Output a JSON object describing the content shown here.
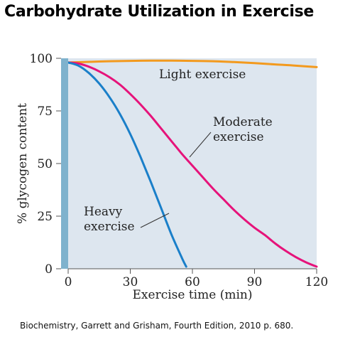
{
  "title": "Carbohydrate Utilization in Exercise",
  "caption": "Biochemistry, Garrett and Grisham, Fourth Edition, 2010 p. 680.",
  "chart_data": {
    "type": "line",
    "title": "Carbohydrate Utilization in Exercise",
    "xlabel": "Exercise time (min)",
    "ylabel": "% glycogen content",
    "xlim": [
      0,
      120
    ],
    "ylim": [
      0,
      100
    ],
    "xticks": [
      0,
      30,
      60,
      90,
      120
    ],
    "yticks": [
      0,
      25,
      50,
      75,
      100
    ],
    "grid": false,
    "background": "#dde6ef",
    "series": [
      {
        "name": "Light exercise",
        "color": "#f39a1e",
        "x": [
          0,
          10,
          20,
          30,
          40,
          50,
          60,
          70,
          80,
          90,
          100,
          110,
          120
        ],
        "y": [
          98,
          98.3,
          98.6,
          98.8,
          98.9,
          98.9,
          98.8,
          98.6,
          98.2,
          97.7,
          97.1,
          96.5,
          95.8
        ]
      },
      {
        "name": "Moderate exercise",
        "color": "#e6137a",
        "x": [
          0,
          5,
          10,
          15,
          20,
          25,
          30,
          35,
          40,
          45,
          50,
          55,
          60,
          65,
          70,
          75,
          80,
          85,
          90,
          95,
          100,
          105,
          110,
          115,
          120
        ],
        "y": [
          98,
          97.5,
          96,
          93.8,
          91,
          87.5,
          83,
          78,
          72.5,
          66.5,
          60.5,
          54.5,
          49,
          43.5,
          38,
          33,
          28,
          23.5,
          19.5,
          16,
          12,
          8.5,
          5.5,
          3,
          1
        ]
      },
      {
        "name": "Heavy exercise",
        "color": "#1a7fc9",
        "x": [
          0,
          5,
          10,
          15,
          20,
          25,
          30,
          35,
          40,
          45,
          50,
          55,
          57
        ],
        "y": [
          98,
          96.5,
          93,
          88,
          81.5,
          73.5,
          64,
          53,
          41,
          28.5,
          16,
          5,
          1
        ]
      }
    ],
    "annotations": [
      {
        "text": [
          "Light exercise"
        ],
        "series": "Light exercise"
      },
      {
        "text": [
          "Moderate",
          "exercise"
        ],
        "series": "Moderate exercise"
      },
      {
        "text": [
          "Heavy",
          "exercise"
        ],
        "series": "Heavy exercise"
      }
    ]
  }
}
